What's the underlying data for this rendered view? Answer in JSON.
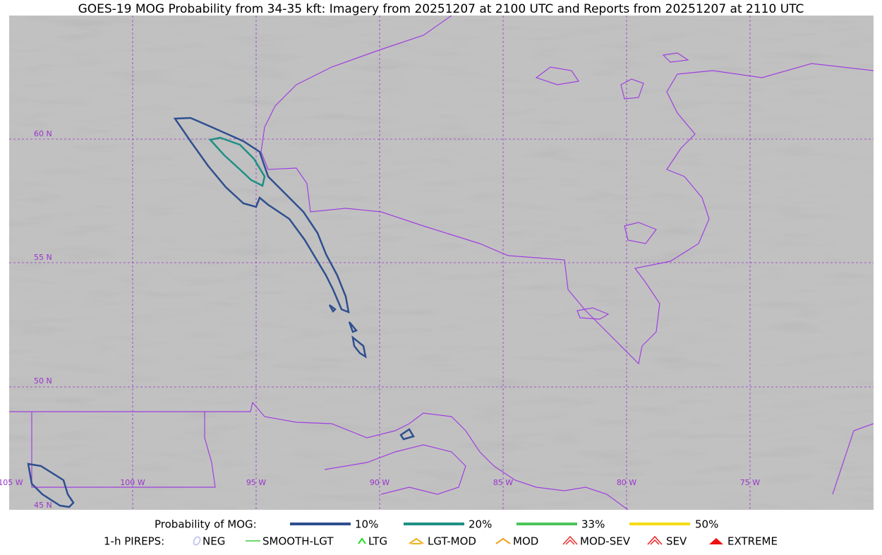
{
  "title": "GOES-19 MOG Probability from 34-35 kft: Imagery from 20251207 at 2100 UTC and Reports from 20251207 at 2110 UTC",
  "latitude_labels": [
    "60 N",
    "55 N",
    "50 N",
    "45 N"
  ],
  "longitude_labels": [
    "105 W",
    "100 W",
    "95 W",
    "90 W",
    "85 W",
    "80 W",
    "75 W"
  ],
  "legend": {
    "probability": {
      "label": "Probability of MOG:",
      "items": [
        "10%",
        "20%",
        "33%",
        "50%"
      ]
    },
    "pireps": {
      "label": "1-h PIREPS:",
      "items": [
        "NEG",
        "SMOOTH-LGT",
        "LTG",
        "LGT-MOD",
        "MOD",
        "MOD-SEV",
        "SEV",
        "EXTREME"
      ]
    }
  }
}
